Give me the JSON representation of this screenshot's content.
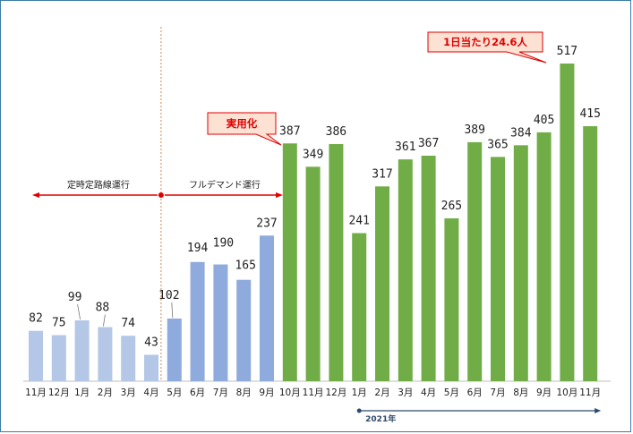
{
  "chart_data": {
    "type": "bar",
    "title": "",
    "xlabel": "",
    "ylabel": "",
    "ylim": [
      0,
      560
    ],
    "categories": [
      "11月",
      "12月",
      "1月",
      "2月",
      "3月",
      "4月",
      "5月",
      "6月",
      "7月",
      "8月",
      "9月",
      "10月",
      "11月",
      "12月",
      "1月",
      "2月",
      "3月",
      "4月",
      "5月",
      "6月",
      "7月",
      "8月",
      "9月",
      "10月",
      "11月"
    ],
    "values": [
      82,
      75,
      99,
      88,
      74,
      43,
      102,
      194,
      190,
      165,
      237,
      387,
      349,
      386,
      241,
      317,
      361,
      367,
      265,
      389,
      365,
      384,
      405,
      517,
      415
    ],
    "phases": [
      {
        "name": "定時定路線運行",
        "color": "#b4c7e7",
        "count": 6
      },
      {
        "name": "フルデマンド運行",
        "color": "#8faadc",
        "count": 5
      },
      {
        "name": "実用化",
        "color": "#70ad47",
        "count": 14
      }
    ],
    "annotations": {
      "practical": "実用化",
      "peak": "1日当たり24.6人"
    },
    "year_label": "2021年",
    "grid": false
  }
}
